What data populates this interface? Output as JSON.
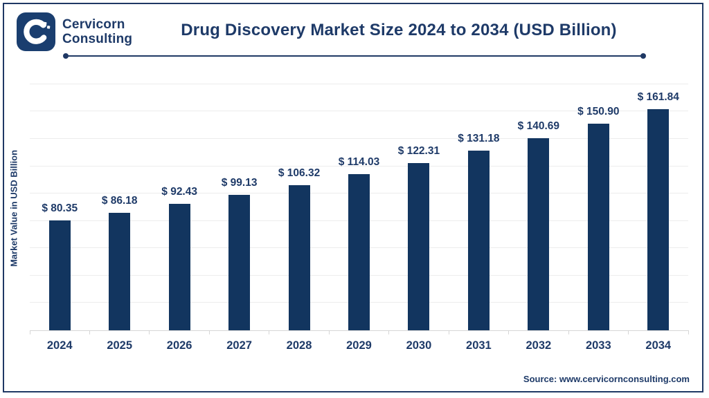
{
  "header": {
    "logo_line1": "Cervicorn",
    "logo_line2": "Consulting",
    "title": "Drug Discovery Market Size 2024 to 2034 (USD Billion)"
  },
  "chart_data": {
    "type": "bar",
    "title": "Drug Discovery Market Size 2024 to 2034 (USD Billion)",
    "categories": [
      "2024",
      "2025",
      "2026",
      "2027",
      "2028",
      "2029",
      "2030",
      "2031",
      "2032",
      "2033",
      "2034"
    ],
    "values": [
      80.35,
      86.18,
      92.43,
      99.13,
      106.32,
      114.03,
      122.31,
      131.18,
      140.69,
      150.9,
      161.84
    ],
    "value_labels": [
      "$ 80.35",
      "$ 86.18",
      "$ 92.43",
      "$ 99.13",
      "$ 106.32",
      "$ 114.03",
      "$ 122.31",
      "$ 131.18",
      "$ 140.69",
      "$ 150.90",
      "$ 161.84"
    ],
    "xlabel": "",
    "ylabel": "Market Value in USD Billion",
    "ylim": [
      0,
      186
    ],
    "gridline_step": 20,
    "grid": true,
    "legend_position": "none",
    "bar_color": "#12355f"
  },
  "footer": {
    "source": "Source: www.cervicornconsulting.com"
  },
  "colors": {
    "navy_text": "#1e3a68",
    "bar": "#12355f",
    "border": "#1f3864",
    "gridline": "#ececec",
    "axis": "#d6d6d6",
    "background": "#ffffff"
  }
}
